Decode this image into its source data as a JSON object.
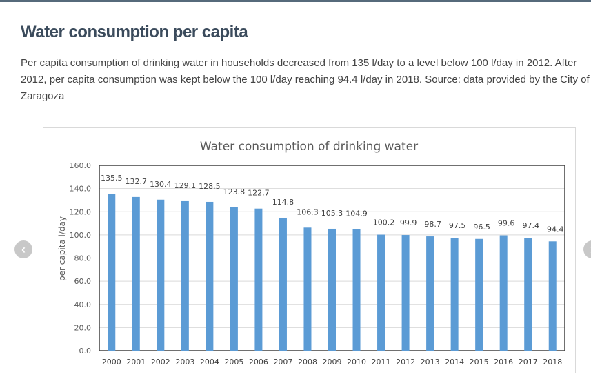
{
  "page": {
    "title": "Water consumption per capita",
    "description": "Per capita consumption of drinking water in households decreased from 135 l/day to a level below 100 l/day in 2012. After 2012, per capita consumption was kept below the 100 l/day reaching 94.4 l/day in 2018. Source: data provided by the City of Zaragoza"
  },
  "carousel": {
    "prev_icon": "chevron-left-icon",
    "next_icon": "chevron-right-icon"
  },
  "chart_data": {
    "type": "bar",
    "title": "Water consumption of drinking water",
    "xlabel": "",
    "ylabel": "per capita l/day",
    "ylim": [
      0,
      160
    ],
    "yticks": [
      "0.0",
      "20.0",
      "40.0",
      "60.0",
      "80.0",
      "100.0",
      "120.0",
      "140.0",
      "160.0"
    ],
    "grid": true,
    "bar_color": "#5b9bd5",
    "categories": [
      "2000",
      "2001",
      "2002",
      "2003",
      "2004",
      "2005",
      "2006",
      "2007",
      "2008",
      "2009",
      "2010",
      "2011",
      "2012",
      "2013",
      "2014",
      "2015",
      "2016",
      "2017",
      "2018"
    ],
    "values": [
      135.5,
      132.7,
      130.4,
      129.1,
      128.5,
      123.8,
      122.7,
      114.8,
      106.3,
      105.3,
      104.9,
      100.2,
      99.9,
      98.7,
      97.5,
      96.5,
      99.6,
      97.4,
      94.4
    ],
    "labels": [
      "135.5",
      "132.7",
      "130.4",
      "129.1",
      "128.5",
      "123.8",
      "122.7",
      "114.8",
      "106.3",
      "105.3",
      "104.9",
      "100.2",
      "99.9",
      "98.7",
      "97.5",
      "96.5",
      "99.6",
      "97.4",
      "94.4"
    ]
  }
}
